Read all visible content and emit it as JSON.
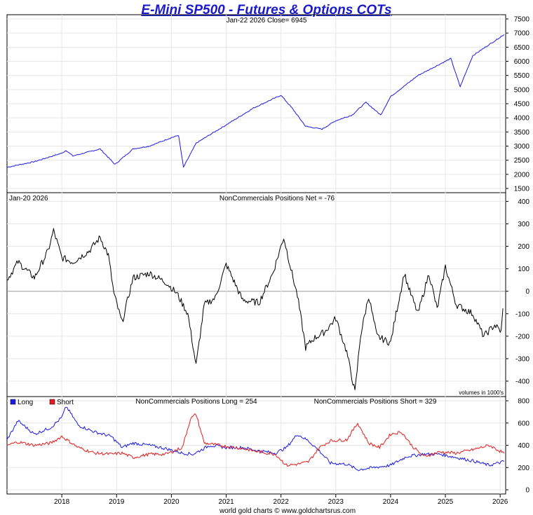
{
  "chart_data": [
    {
      "type": "line",
      "title": "E-Mini SP500 - Futures & Options COTs",
      "header": "Jan-22  2026   Close= 6945",
      "ylim": [
        1500,
        7500
      ],
      "yticks": [
        "1500",
        "2000",
        "2500",
        "3000",
        "3500",
        "4000",
        "4500",
        "5000",
        "5500",
        "6000",
        "6500",
        "7000",
        "7500"
      ],
      "series": [
        {
          "name": "Close",
          "color": "#1a1ae6",
          "x": [
            2017.0,
            2017.5,
            2018.0,
            2018.08,
            2018.2,
            2018.7,
            2018.97,
            2019.3,
            2019.6,
            2020.0,
            2020.13,
            2020.22,
            2020.45,
            2020.7,
            2021.0,
            2021.5,
            2022.0,
            2022.2,
            2022.45,
            2022.75,
            2023.0,
            2023.3,
            2023.55,
            2023.82,
            2024.0,
            2024.5,
            2025.1,
            2025.27,
            2025.5,
            2026.07
          ],
          "values": [
            2250,
            2450,
            2750,
            2850,
            2650,
            2900,
            2350,
            2900,
            3000,
            3300,
            3380,
            2250,
            3100,
            3400,
            3750,
            4350,
            4800,
            4350,
            3700,
            3600,
            3900,
            4100,
            4550,
            4100,
            4750,
            5500,
            6100,
            5100,
            6200,
            6945
          ]
        }
      ]
    },
    {
      "type": "line",
      "header": "Jan-20  2026",
      "label": "NonCommercials Positions Net = -76",
      "footnote": "volumes in 1000's",
      "ylim": [
        -450,
        420
      ],
      "yticks": [
        "-400",
        "-300",
        "-200",
        "-100",
        "0",
        "100",
        "200",
        "300",
        "400"
      ],
      "series": [
        {
          "name": "Net",
          "color": "#000000",
          "x": [
            2017.0,
            2017.2,
            2017.5,
            2017.75,
            2017.85,
            2018.0,
            2018.2,
            2018.5,
            2018.7,
            2018.85,
            2018.95,
            2019.1,
            2019.3,
            2019.6,
            2019.9,
            2020.1,
            2020.3,
            2020.45,
            2020.6,
            2020.8,
            2021.0,
            2021.3,
            2021.6,
            2021.85,
            2022.05,
            2022.2,
            2022.3,
            2022.45,
            2022.6,
            2022.8,
            2023.0,
            2023.2,
            2023.35,
            2023.45,
            2023.6,
            2023.75,
            2024.0,
            2024.1,
            2024.25,
            2024.35,
            2024.5,
            2024.7,
            2024.85,
            2025.0,
            2025.2,
            2025.5,
            2025.7,
            2025.9,
            2026.02,
            2026.05
          ],
          "values": [
            50,
            130,
            60,
            180,
            270,
            150,
            130,
            180,
            240,
            160,
            -10,
            -140,
            60,
            80,
            40,
            -10,
            -100,
            -330,
            -60,
            -30,
            120,
            -40,
            -50,
            80,
            240,
            80,
            -20,
            -250,
            -210,
            -180,
            -120,
            -270,
            -450,
            -200,
            -20,
            -200,
            -230,
            -100,
            80,
            0,
            -100,
            80,
            -80,
            110,
            -60,
            -100,
            -200,
            -150,
            -180,
            -76
          ]
        }
      ]
    },
    {
      "type": "line",
      "label_long": "NonCommercials Positions Long = 254",
      "label_short": "NonCommercials Positions Short = 329",
      "legend": [
        "Long",
        "Short"
      ],
      "ylim": [
        0,
        800
      ],
      "yticks": [
        "0",
        "200",
        "400",
        "600",
        "800"
      ],
      "xlim": [
        2017.0,
        2026.1
      ],
      "xticks": [
        "2018",
        "2019",
        "2020",
        "2021",
        "2022",
        "2023",
        "2024",
        "2025",
        "2026"
      ],
      "series": [
        {
          "name": "Long",
          "color": "#1a1ae6",
          "x": [
            2017.0,
            2017.2,
            2017.5,
            2017.8,
            2018.0,
            2018.08,
            2018.3,
            2018.6,
            2018.9,
            2019.1,
            2019.3,
            2019.6,
            2019.9,
            2020.2,
            2020.4,
            2020.7,
            2021.0,
            2021.3,
            2021.6,
            2021.9,
            2022.1,
            2022.3,
            2022.5,
            2022.7,
            2022.9,
            2023.2,
            2023.4,
            2023.7,
            2024.0,
            2024.3,
            2024.6,
            2024.9,
            2025.2,
            2025.5,
            2025.8,
            2026.07
          ],
          "values": [
            450,
            620,
            500,
            560,
            650,
            750,
            580,
            520,
            480,
            380,
            420,
            400,
            370,
            330,
            320,
            400,
            380,
            380,
            350,
            330,
            380,
            500,
            440,
            350,
            240,
            230,
            180,
            200,
            220,
            300,
            320,
            320,
            290,
            260,
            220,
            254
          ]
        },
        {
          "name": "Short",
          "color": "#e61a1a",
          "x": [
            2017.0,
            2017.2,
            2017.5,
            2017.8,
            2018.0,
            2018.3,
            2018.6,
            2018.9,
            2019.1,
            2019.3,
            2019.6,
            2019.9,
            2020.2,
            2020.35,
            2020.45,
            2020.6,
            2021.0,
            2021.3,
            2021.6,
            2021.9,
            2022.1,
            2022.3,
            2022.5,
            2022.7,
            2022.9,
            2023.2,
            2023.4,
            2023.6,
            2023.8,
            2024.0,
            2024.2,
            2024.4,
            2024.6,
            2024.9,
            2025.2,
            2025.5,
            2025.8,
            2026.07
          ],
          "values": [
            400,
            430,
            400,
            420,
            480,
            380,
            330,
            320,
            330,
            290,
            320,
            320,
            380,
            640,
            680,
            420,
            390,
            370,
            340,
            320,
            220,
            230,
            250,
            380,
            440,
            450,
            600,
            420,
            380,
            500,
            520,
            390,
            300,
            340,
            330,
            360,
            400,
            329
          ]
        }
      ]
    }
  ],
  "footer": "world gold charts © www.goldchartsrus.com"
}
